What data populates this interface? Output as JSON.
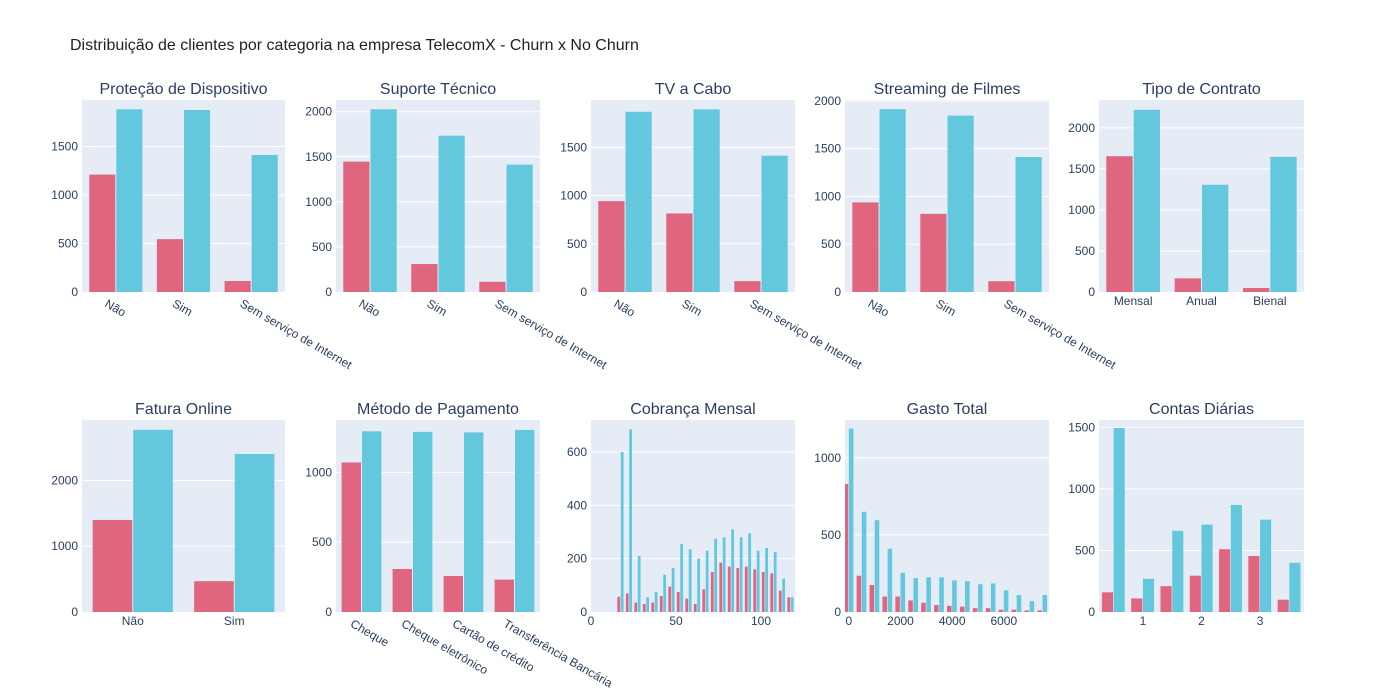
{
  "page": {
    "title": "Distribuição de clientes por categoria na empresa TelecomX - Churn x No Churn"
  },
  "colors": {
    "churn": "#e0657f",
    "no_churn": "#63c7de",
    "plot_bg": "#e5ecf6",
    "grid": "#ffffff",
    "text": "#2a3f5f"
  },
  "chart_data": [
    {
      "type": "bar",
      "title": "Proteção de Dispositivo",
      "categories": [
        "Não",
        "Sim",
        "Sem serviço de Internet"
      ],
      "series": [
        {
          "name": "Churn",
          "values": [
            1211,
            545,
            113
          ]
        },
        {
          "name": "No Churn",
          "values": [
            1884,
            1877,
            1413
          ]
        }
      ],
      "ylim": [
        0,
        1980
      ],
      "yticks": [
        0,
        500,
        1000,
        1500
      ],
      "ytick_labels": [
        "0",
        "500",
        "1000",
        "1500"
      ],
      "rotate_x_labels": true
    },
    {
      "type": "bar",
      "title": "Suporte Técnico",
      "categories": [
        "Não",
        "Sim",
        "Sem serviço de Internet"
      ],
      "series": [
        {
          "name": "Churn",
          "values": [
            1446,
            310,
            113
          ]
        },
        {
          "name": "No Churn",
          "values": [
            2027,
            1734,
            1413
          ]
        }
      ],
      "ylim": [
        0,
        2130
      ],
      "yticks": [
        0,
        500,
        1000,
        1500,
        2000
      ],
      "ytick_labels": [
        "0",
        "500",
        "1000",
        "1500",
        "2000"
      ],
      "rotate_x_labels": true
    },
    {
      "type": "bar",
      "title": "TV a Cabo",
      "categories": [
        "Não",
        "Sim",
        "Sem serviço de Internet"
      ],
      "series": [
        {
          "name": "Churn",
          "values": [
            942,
            814,
            113
          ]
        },
        {
          "name": "No Churn",
          "values": [
            1868,
            1893,
            1413
          ]
        }
      ],
      "ylim": [
        0,
        1990
      ],
      "yticks": [
        0,
        500,
        1000,
        1500
      ],
      "ytick_labels": [
        "0",
        "500",
        "1000",
        "1500"
      ],
      "rotate_x_labels": true
    },
    {
      "type": "bar",
      "title": "Streaming de Filmes",
      "categories": [
        "Não",
        "Sim",
        "Sem serviço de Internet"
      ],
      "series": [
        {
          "name": "Churn",
          "values": [
            938,
            818,
            113
          ]
        },
        {
          "name": "No Churn",
          "values": [
            1914,
            1847,
            1413
          ]
        }
      ],
      "ylim": [
        0,
        2010
      ],
      "yticks": [
        0,
        500,
        1000,
        1500,
        2000
      ],
      "ytick_labels": [
        "0",
        "500",
        "1000",
        "1500",
        "2000"
      ],
      "rotate_x_labels": true
    },
    {
      "type": "bar",
      "title": "Tipo de Contrato",
      "categories": [
        "Mensal",
        "Anual",
        "Bienal"
      ],
      "series": [
        {
          "name": "Churn",
          "values": [
            1655,
            166,
            48
          ]
        },
        {
          "name": "No Churn",
          "values": [
            2220,
            1307,
            1647
          ]
        }
      ],
      "ylim": [
        0,
        2340
      ],
      "yticks": [
        0,
        500,
        1000,
        1500,
        2000
      ],
      "ytick_labels": [
        "0",
        "500",
        "1000",
        "1500",
        "2000"
      ],
      "rotate_x_labels": false
    },
    {
      "type": "bar",
      "title": "Fatura Online",
      "categories": [
        "Não",
        "Sim"
      ],
      "series": [
        {
          "name": "Churn",
          "values": [
            1400,
            469
          ]
        },
        {
          "name": "No Churn",
          "values": [
            2771,
            2403
          ]
        }
      ],
      "ylim": [
        0,
        2920
      ],
      "yticks": [
        0,
        1000,
        2000
      ],
      "ytick_labels": [
        "0",
        "1000",
        "2000"
      ],
      "rotate_x_labels": false
    },
    {
      "type": "bar",
      "title": "Método de Pagamento",
      "categories": [
        "Cheque",
        "Cheque eletrônico",
        "Cartão de crédito",
        "Transferência Bancária"
      ],
      "series": [
        {
          "name": "Churn",
          "values": [
            1071,
            308,
            258,
            232
          ]
        },
        {
          "name": "No Churn",
          "values": [
            1294,
            1290,
            1286,
            1304
          ]
        }
      ],
      "ylim": [
        0,
        1375
      ],
      "yticks": [
        0,
        500,
        1000
      ],
      "ytick_labels": [
        "0",
        "500",
        "1000"
      ],
      "rotate_x_labels": true
    },
    {
      "type": "histogram",
      "title": "Cobrança Mensal",
      "bin_start": 15,
      "bin_width": 5,
      "series": [
        {
          "name": "Churn",
          "values": [
            57,
            70,
            35,
            30,
            35,
            60,
            95,
            75,
            50,
            30,
            85,
            150,
            185,
            170,
            165,
            170,
            160,
            150,
            145,
            80,
            55
          ]
        },
        {
          "name": "No Churn",
          "values": [
            600,
            685,
            210,
            55,
            75,
            140,
            165,
            255,
            235,
            200,
            230,
            275,
            280,
            310,
            280,
            295,
            230,
            240,
            225,
            125,
            55
          ]
        }
      ],
      "xlim": [
        0,
        120
      ],
      "xticks": [
        0,
        50,
        100
      ],
      "xtick_labels": [
        "0",
        "50",
        "100"
      ],
      "ylim": [
        0,
        720
      ],
      "yticks": [
        0,
        200,
        400,
        600
      ],
      "ytick_labels": [
        "0",
        "200",
        "400",
        "600"
      ]
    },
    {
      "type": "histogram",
      "title": "Gasto Total",
      "bin_start": -250,
      "bin_width": 500,
      "series": [
        {
          "name": "Churn",
          "values": [
            830,
            235,
            175,
            100,
            100,
            75,
            60,
            45,
            40,
            35,
            25,
            25,
            15,
            15,
            10,
            10
          ]
        },
        {
          "name": "No Churn",
          "values": [
            1190,
            650,
            595,
            410,
            255,
            220,
            225,
            225,
            205,
            200,
            180,
            185,
            140,
            110,
            70,
            110
          ]
        }
      ],
      "xlim": [
        -150,
        7750
      ],
      "xticks": [
        0,
        2000,
        4000,
        6000
      ],
      "xtick_labels": [
        "0",
        "2000",
        "4000",
        "6000"
      ],
      "ylim": [
        0,
        1245
      ],
      "yticks": [
        0,
        500,
        1000
      ],
      "ytick_labels": [
        "0",
        "500",
        "1000"
      ]
    },
    {
      "type": "histogram",
      "title": "Contas Diárias",
      "bin_start": 0.25,
      "bin_width": 0.5,
      "series": [
        {
          "name": "Churn",
          "values": [
            160,
            110,
            210,
            295,
            510,
            455,
            100
          ]
        },
        {
          "name": "No Churn",
          "values": [
            1495,
            270,
            660,
            710,
            870,
            750,
            400
          ]
        }
      ],
      "xlim": [
        0.25,
        3.75
      ],
      "xticks": [
        1,
        2,
        3
      ],
      "xtick_labels": [
        "1",
        "2",
        "3"
      ],
      "ylim": [
        0,
        1560
      ],
      "yticks": [
        0,
        500,
        1000,
        1500
      ],
      "ytick_labels": [
        "0",
        "500",
        "1000",
        "1500"
      ]
    }
  ]
}
